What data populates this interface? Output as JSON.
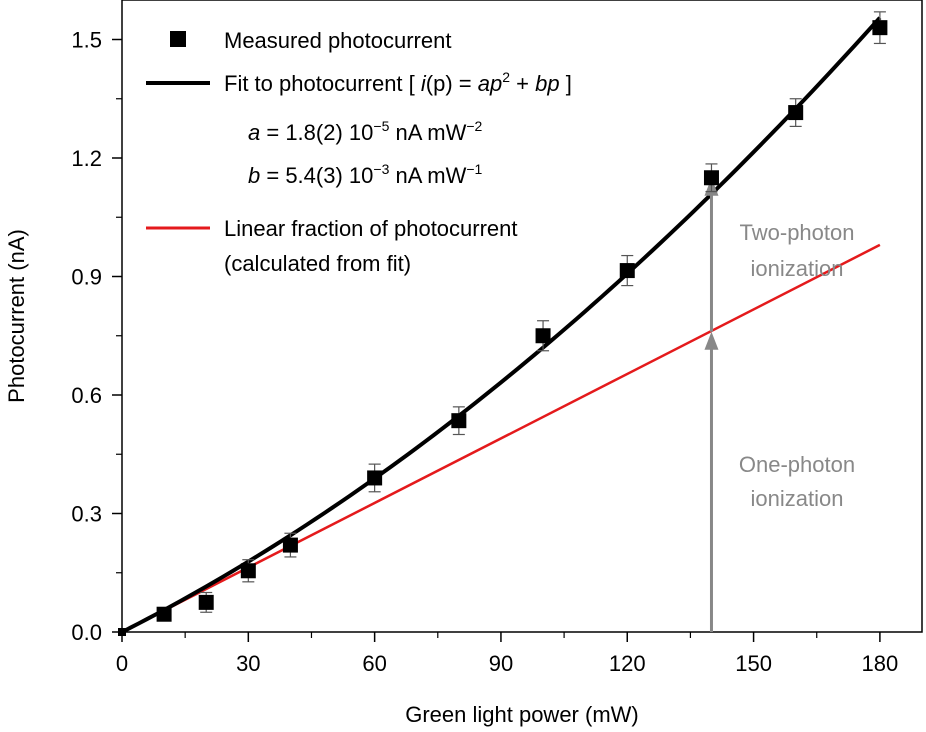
{
  "chart_data": {
    "type": "scatter",
    "xlabel": "Green light power (mW)",
    "ylabel": "Photocurrent (nA)",
    "xlim": [
      0,
      190
    ],
    "ylim": [
      0,
      1.6
    ],
    "x_ticks": [
      0,
      30,
      60,
      90,
      120,
      150,
      180
    ],
    "x_tick_labels": [
      "0",
      "30",
      "60",
      "90",
      "120",
      "150",
      "180"
    ],
    "y_ticks": [
      0,
      0.3,
      0.6,
      0.9,
      1.2,
      1.5
    ],
    "y_tick_labels": [
      "0.0",
      "0.3",
      "0.6",
      "0.9",
      "1.2",
      "1.5"
    ],
    "grid": false,
    "legend_placement": "top-left",
    "series": [
      {
        "name": "Measured photocurrent",
        "kind": "scatter",
        "color": "#000000",
        "marker": "square",
        "x": [
          0,
          10,
          20,
          30,
          40,
          60,
          80,
          100,
          120,
          140,
          160,
          180
        ],
        "y": [
          0.0,
          0.045,
          0.075,
          0.155,
          0.22,
          0.39,
          0.535,
          0.75,
          0.915,
          1.15,
          1.315,
          1.53
        ],
        "err": [
          0.0,
          0.012,
          0.025,
          0.028,
          0.03,
          0.035,
          0.035,
          0.038,
          0.038,
          0.035,
          0.035,
          0.04
        ]
      },
      {
        "name": "Fit to photocurrent",
        "kind": "line",
        "color": "#000000",
        "formula": "i(p)=ap^2+bp",
        "a": 1.8e-05,
        "b": 0.0054,
        "x_range": [
          0,
          180
        ]
      },
      {
        "name": "Linear fraction of photocurrent (calculated from fit)",
        "kind": "line",
        "color": "#e41a1c",
        "x": [
          0,
          180
        ],
        "y": [
          0,
          0.98
        ]
      }
    ],
    "legend": {
      "measured": "Measured photocurrent",
      "fit_prefix": "Fit to photocurrent [ ",
      "fit_formula_i": "i",
      "fit_formula_p": "(p)",
      "fit_formula_eq": " = ",
      "fit_formula_a": "ap",
      "fit_formula_plus": " + ",
      "fit_formula_bp": "bp",
      "fit_suffix": " ]",
      "param_a_sym": "a",
      "param_a_val": " = 1.8(2) 10",
      "param_a_exp": "−5",
      "param_a_unit": " nA mW",
      "param_a_unit_exp": "−2",
      "param_b_sym": "b",
      "param_b_val": " = 5.4(3) 10",
      "param_b_exp": "−3",
      "param_b_unit": " nA mW",
      "param_b_unit_exp": "−1",
      "linear_line1": "Linear fraction of photocurrent",
      "linear_line2": "(calculated from fit)"
    },
    "annotations": {
      "two_photon_line1": "Two-photon",
      "two_photon_line2": "ionization",
      "one_photon_line1": "One-photon",
      "one_photon_line2": "ionization",
      "arrow_x": 140,
      "arrow_color": "#888888",
      "two_photon_arrow_y": [
        0.76,
        1.15
      ],
      "one_photon_arrow_y": [
        0.0,
        0.76
      ]
    }
  }
}
